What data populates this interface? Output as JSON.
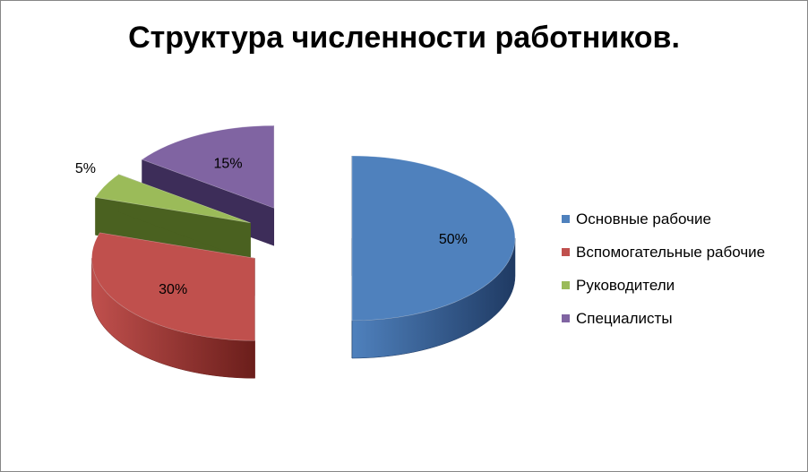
{
  "chart_data": {
    "type": "pie",
    "title": "Структура численности работников.",
    "categories": [
      "Основные рабочие",
      "Вспомогательные рабочие",
      "Руководители",
      "Специалисты"
    ],
    "values": [
      50,
      30,
      5,
      15
    ],
    "data_labels": [
      "50%",
      "30%",
      "5%",
      "15%"
    ],
    "colors": [
      "#4F81BD",
      "#C0504D",
      "#9BBB59",
      "#8064A2"
    ],
    "side_colors": [
      "#1F3A63",
      "#6B1E1B",
      "#4A6120",
      "#3D2D59"
    ],
    "style": "3d-exploded",
    "legend": "right"
  }
}
